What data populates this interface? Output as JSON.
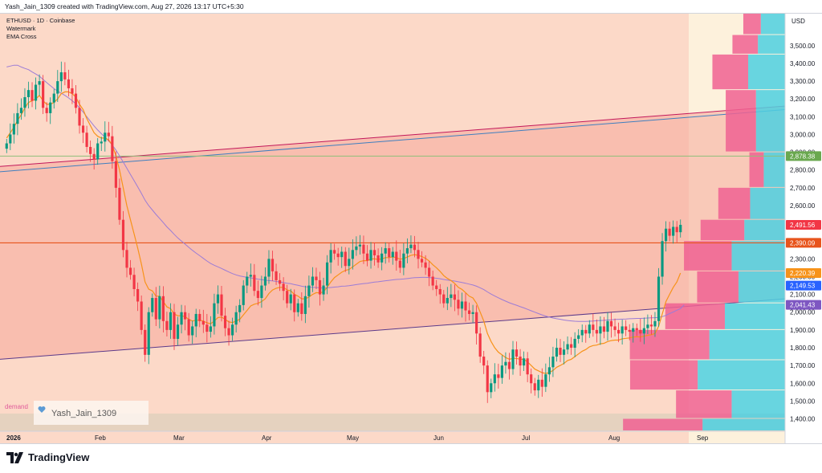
{
  "header": {
    "text": "Yash_Jain_1309 created with TradingView.com, Aug 27, 2026 13:17 UTC+5:30"
  },
  "indicators": {
    "symbol": "ETHUSD · 1D · Coinbase",
    "watermark": "Watermark",
    "ema": "EMA Cross"
  },
  "overlay": {
    "demand": "demand",
    "user_badge": "Yash_Jain_1309",
    "user_badge_icon": "heart-icon"
  },
  "footer": {
    "brand": "TradingView",
    "logo_icon": "tradingview-logo-icon"
  },
  "colors": {
    "up": "#089981",
    "down": "#f23645",
    "ema_fast": "#f7931a",
    "ema_slow": "#9c7cd6",
    "zone_fill": "#f8c5b4",
    "channel_fill": "#f6a79a",
    "hline_red": "#e8541c",
    "hline_green": "#8fbf7a",
    "vol_profile_pink": "#f06292",
    "vol_profile_cyan": "#4dd0e1",
    "axis_text": "#131722"
  },
  "chart_data": {
    "type": "candlestick",
    "symbol": "ETHUSD",
    "timeframe": "1D",
    "exchange": "Coinbase",
    "currency": "USD",
    "ylim": [
      1330,
      3680
    ],
    "y_ticks": [
      1400,
      1500,
      1600,
      1700,
      1800,
      1900,
      2000,
      2100,
      2200,
      2300,
      2400,
      2500,
      2600,
      2700,
      2800,
      2900,
      3000,
      3100,
      3200,
      3300,
      3400,
      3500
    ],
    "y_tick_labels": [
      "1,400.00",
      "1,500.00",
      "1,600.00",
      "1,700.00",
      "1,800.00",
      "1,900.00",
      "2,000.00",
      "2,100.00",
      "2,200.00",
      "2,300.00",
      "2,400.00",
      "2,500.00",
      "2,600.00",
      "2,700.00",
      "2,800.00",
      "2,900.00",
      "3,000.00",
      "3,100.00",
      "3,200.00",
      "3,300.00",
      "3,400.00",
      "3,500.00"
    ],
    "x_ticks": [
      "2026",
      "Feb",
      "Mar",
      "Apr",
      "May",
      "Jun",
      "Jul",
      "Aug",
      "Sep"
    ],
    "price_labels": [
      {
        "value": 2878.38,
        "text": "2,878.38",
        "color": "#6aa84f"
      },
      {
        "value": 2491.56,
        "text": "2,491.56",
        "color": "#f23645"
      },
      {
        "value": 2390.09,
        "text": "2,390.09",
        "color": "#e8541c"
      },
      {
        "value": 2220.39,
        "text": "2,220.39",
        "color": "#f7931a"
      },
      {
        "value": 2149.53,
        "text": "2,149.53",
        "color": "#2962ff"
      },
      {
        "value": 2041.43,
        "text": "2,041.43",
        "color": "#7e57c2"
      }
    ],
    "series_closes": [
      2950,
      3000,
      3060,
      3120,
      3150,
      3210,
      3250,
      3190,
      3280,
      3300,
      3150,
      3120,
      3180,
      3230,
      3300,
      3350,
      3310,
      3260,
      3230,
      3150,
      3050,
      3010,
      2930,
      2890,
      2860,
      2950,
      2960,
      3010,
      2990,
      2850,
      2700,
      2520,
      2350,
      2250,
      2210,
      2130,
      2060,
      1900,
      1760,
      2000,
      2080,
      1960,
      2090,
      1950,
      1900,
      2000,
      1850,
      1930,
      2000,
      1960,
      1870,
      1920,
      1990,
      1950,
      1930,
      1890,
      1920,
      2050,
      2100,
      1980,
      1910,
      1870,
      1930,
      2000,
      2040,
      2150,
      2200,
      2210,
      2120,
      2080,
      2150,
      2200,
      2300,
      2230,
      2180,
      2160,
      2120,
      2050,
      2100,
      2000,
      2050,
      1990,
      2090,
      2150,
      2200,
      2180,
      2100,
      2150,
      2280,
      2350,
      2330,
      2310,
      2340,
      2260,
      2300,
      2350,
      2370,
      2380,
      2330,
      2290,
      2350,
      2320,
      2280,
      2330,
      2360,
      2310,
      2340,
      2290,
      2250,
      2330,
      2360,
      2380,
      2350,
      2300,
      2280,
      2250,
      2200,
      2150,
      2130,
      2100,
      2050,
      2080,
      2100,
      2070,
      2020,
      2060,
      2010,
      1990,
      2000,
      1880,
      1750,
      1700,
      1550,
      1600,
      1650,
      1630,
      1700,
      1720,
      1680,
      1790,
      1750,
      1700,
      1740,
      1650,
      1600,
      1560,
      1620,
      1580,
      1650,
      1690,
      1750,
      1800,
      1760,
      1790,
      1820,
      1800,
      1850,
      1870,
      1900,
      1880,
      1930,
      1900,
      1880,
      1920,
      1890,
      1950,
      1920,
      1900,
      1880,
      1920,
      1900,
      1890,
      1910,
      1900,
      1880,
      1910,
      1930,
      1920,
      1950,
      2200,
      2400,
      2470,
      2430,
      2480,
      2450,
      2491.56
    ],
    "ema_fast": [
      2980,
      3010,
      3040,
      3080,
      3110,
      3150,
      3180,
      3190,
      3200,
      3220,
      3190,
      3170,
      3170,
      3180,
      3200,
      3230,
      3240,
      3240,
      3230,
      3210,
      3170,
      3140,
      3090,
      3050,
      3010,
      2990,
      2980,
      2980,
      2970,
      2940,
      2880,
      2800,
      2700,
      2600,
      2520,
      2440,
      2360,
      2270,
      2170,
      2130,
      2120,
      2090,
      2090,
      2060,
      2030,
      2020,
      1990,
      1980,
      1980,
      1975,
      1960,
      1950,
      1955,
      1955,
      1950,
      1940,
      1935,
      1950,
      1970,
      1972,
      1960,
      1945,
      1942,
      1950,
      1960,
      1985,
      2010,
      2035,
      2045,
      2050,
      2060,
      2075,
      2105,
      2125,
      2135,
      2140,
      2140,
      2125,
      2120,
      2100,
      2090,
      2075,
      2075,
      2085,
      2100,
      2110,
      2108,
      2115,
      2140,
      2170,
      2195,
      2210,
      2225,
      2235,
      2240,
      2255,
      2270,
      2285,
      2290,
      2290,
      2300,
      2300,
      2297,
      2300,
      2307,
      2307,
      2311,
      2307,
      2298,
      2302,
      2310,
      2320,
      2324,
      2320,
      2313,
      2303,
      2288,
      2267,
      2250,
      2230,
      2206,
      2190,
      2178,
      2162,
      2140,
      2128,
      2110,
      2090,
      2080,
      2050,
      2000,
      1950,
      1880,
      1835,
      1800,
      1775,
      1760,
      1745,
      1735,
      1740,
      1740,
      1735,
      1735,
      1720,
      1700,
      1680,
      1670,
      1660,
      1655,
      1660,
      1672,
      1690,
      1700,
      1712,
      1728,
      1735,
      1750,
      1765,
      1780,
      1790,
      1805,
      1812,
      1815,
      1822,
      1825,
      1835,
      1840,
      1843,
      1843,
      1850,
      1853,
      1855,
      1860,
      1862,
      1860,
      1865,
      1870,
      1873,
      1880,
      1920,
      1990,
      2060,
      2100,
      2140,
      2170,
      2220.39
    ],
    "ema_slow": [
      3380,
      3385,
      3390,
      3390,
      3380,
      3372,
      3365,
      3352,
      3340,
      3328,
      3310,
      3292,
      3275,
      3258,
      3244,
      3232,
      3220,
      3206,
      3190,
      3172,
      3150,
      3126,
      3100,
      3074,
      3048,
      3025,
      3005,
      2985,
      2964,
      2940,
      2912,
      2880,
      2845,
      2810,
      2775,
      2740,
      2705,
      2668,
      2630,
      2600,
      2575,
      2550,
      2528,
      2504,
      2480,
      2460,
      2438,
      2418,
      2400,
      2383,
      2365,
      2348,
      2333,
      2318,
      2303,
      2288,
      2274,
      2264,
      2255,
      2246,
      2236,
      2226,
      2217,
      2210,
      2204,
      2200,
      2196,
      2193,
      2190,
      2186,
      2183,
      2180,
      2178,
      2176,
      2173,
      2170,
      2167,
      2163,
      2160,
      2155,
      2151,
      2146,
      2143,
      2141,
      2140,
      2139,
      2137,
      2136,
      2137,
      2139,
      2141,
      2143,
      2146,
      2147,
      2149,
      2152,
      2155,
      2158,
      2161,
      2163,
      2166,
      2169,
      2171,
      2174,
      2177,
      2179,
      2182,
      2184,
      2185,
      2187,
      2189,
      2192,
      2194,
      2195,
      2196,
      2196,
      2195,
      2193,
      2191,
      2188,
      2184,
      2181,
      2178,
      2175,
      2171,
      2167,
      2163,
      2158,
      2153,
      2146,
      2137,
      2127,
      2114,
      2102,
      2091,
      2081,
      2071,
      2062,
      2053,
      2046,
      2039,
      2031,
      2024,
      2016,
      2008,
      2000,
      1992,
      1985,
      1978,
      1972,
      1967,
      1963,
      1960,
      1956,
      1953,
      1951,
      1949,
      1948,
      1948,
      1948,
      1949,
      1950,
      1952,
      1953,
      1954,
      1956,
      1957,
      1959,
      1960,
      1961,
      1962,
      1963,
      1964,
      1965,
      1965,
      1966,
      1967,
      1968,
      1969,
      1971,
      1975,
      1982,
      1992,
      2001,
      2011,
      2020,
      2041.43
    ],
    "channel": {
      "upper_start": {
        "date": "2026-01-01",
        "value": 2820
      },
      "upper_end": {
        "date": "2026-09-05",
        "value": 3160
      },
      "lower_start": {
        "date": "2026-01-01",
        "value": 1735
      },
      "lower_end": {
        "date": "2026-09-05",
        "value": 2075
      }
    },
    "blue_trendline": {
      "start": 2790,
      "end": 3140
    },
    "horizontal_levels": [
      2878.38,
      2390.09
    ]
  }
}
